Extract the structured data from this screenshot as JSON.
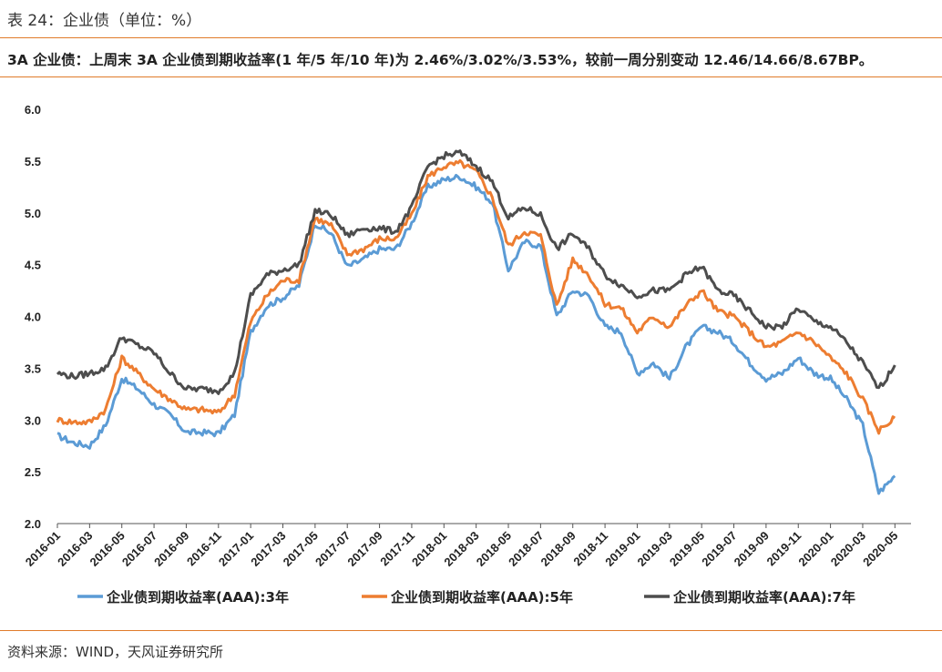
{
  "header": {
    "caption": "表 24：企业债（单位：%）",
    "subtitle": "3A 企业债：上周末 3A 企业债到期收益率(1 年/5 年/10 年)为 2.46%/3.02%/3.53%，较前一周分别变动 12.46/14.66/8.67BP。"
  },
  "footer": {
    "source": "资料来源：WIND，天风证券研究所"
  },
  "colors": {
    "accent_rule": "#e07b2a",
    "series_3y": "#5b9bd5",
    "series_5y": "#ed7d31",
    "series_7y": "#4d4d4d",
    "axis": "#555555"
  },
  "chart_data": {
    "type": "line",
    "title": "",
    "xlabel": "",
    "ylabel": "",
    "ylim": [
      2.0,
      6.0
    ],
    "yticks": [
      "6.0",
      "5.5",
      "5.0",
      "4.5",
      "4.0",
      "3.5",
      "3.0",
      "2.5",
      "2.0"
    ],
    "grid": false,
    "legend_position": "bottom",
    "x_tick_labels": [
      "2016-01",
      "2016-03",
      "2016-05",
      "2016-07",
      "2016-09",
      "2016-11",
      "2017-01",
      "2017-03",
      "2017-05",
      "2017-07",
      "2017-09",
      "2017-11",
      "2018-01",
      "2018-03",
      "2018-05",
      "2018-07",
      "2018-09",
      "2018-11",
      "2019-01",
      "2019-03",
      "2019-05",
      "2019-07",
      "2019-09",
      "2019-11",
      "2020-01",
      "2020-03",
      "2020-05"
    ],
    "x": [
      "2016-01",
      "2016-02",
      "2016-03",
      "2016-04",
      "2016-05",
      "2016-06",
      "2016-07",
      "2016-08",
      "2016-09",
      "2016-10",
      "2016-11",
      "2016-12",
      "2017-01",
      "2017-02",
      "2017-03",
      "2017-04",
      "2017-05",
      "2017-06",
      "2017-07",
      "2017-08",
      "2017-09",
      "2017-10",
      "2017-11",
      "2017-12",
      "2018-01",
      "2018-02",
      "2018-03",
      "2018-04",
      "2018-05",
      "2018-06",
      "2018-07",
      "2018-08",
      "2018-09",
      "2018-10",
      "2018-11",
      "2018-12",
      "2019-01",
      "2019-02",
      "2019-03",
      "2019-04",
      "2019-05",
      "2019-06",
      "2019-07",
      "2019-08",
      "2019-09",
      "2019-10",
      "2019-11",
      "2019-12",
      "2020-01",
      "2020-02",
      "2020-03",
      "2020-04",
      "2020-05"
    ],
    "series": [
      {
        "name": "企业债到期收益率(AAA):3年",
        "values": [
          2.85,
          2.78,
          2.75,
          2.95,
          3.4,
          3.3,
          3.15,
          3.05,
          2.88,
          2.88,
          2.87,
          3.05,
          3.85,
          4.1,
          4.18,
          4.3,
          4.9,
          4.8,
          4.48,
          4.55,
          4.65,
          4.65,
          4.9,
          5.25,
          5.32,
          5.35,
          5.25,
          5.1,
          4.45,
          4.72,
          4.68,
          4.0,
          4.25,
          4.2,
          3.9,
          3.85,
          3.45,
          3.55,
          3.4,
          3.7,
          3.9,
          3.85,
          3.75,
          3.55,
          3.4,
          3.45,
          3.6,
          3.45,
          3.4,
          3.2,
          2.95,
          2.3,
          2.46
        ]
      },
      {
        "name": "企业债到期收益率(AAA):5年",
        "values": [
          3.0,
          2.98,
          2.98,
          3.1,
          3.6,
          3.45,
          3.3,
          3.2,
          3.1,
          3.1,
          3.07,
          3.25,
          3.95,
          4.2,
          4.35,
          4.35,
          4.95,
          4.88,
          4.6,
          4.65,
          4.75,
          4.75,
          4.98,
          5.35,
          5.45,
          5.48,
          5.4,
          5.15,
          4.68,
          4.82,
          4.78,
          4.1,
          4.55,
          4.4,
          4.12,
          4.08,
          3.85,
          4.0,
          3.9,
          4.1,
          4.25,
          4.05,
          4.0,
          3.85,
          3.7,
          3.75,
          3.85,
          3.75,
          3.6,
          3.45,
          3.2,
          2.9,
          3.02
        ]
      },
      {
        "name": "企业债到期收益率(AAA):7年",
        "values": [
          3.45,
          3.42,
          3.45,
          3.5,
          3.8,
          3.72,
          3.65,
          3.45,
          3.3,
          3.3,
          3.28,
          3.45,
          4.2,
          4.4,
          4.45,
          4.5,
          5.02,
          4.98,
          4.78,
          4.85,
          4.85,
          4.82,
          5.05,
          5.45,
          5.55,
          5.58,
          5.45,
          5.3,
          4.95,
          5.05,
          4.98,
          4.65,
          4.8,
          4.65,
          4.4,
          4.3,
          4.2,
          4.25,
          4.25,
          4.4,
          4.48,
          4.25,
          4.2,
          4.05,
          3.9,
          3.9,
          4.08,
          3.95,
          3.9,
          3.75,
          3.55,
          3.3,
          3.53
        ]
      }
    ]
  }
}
